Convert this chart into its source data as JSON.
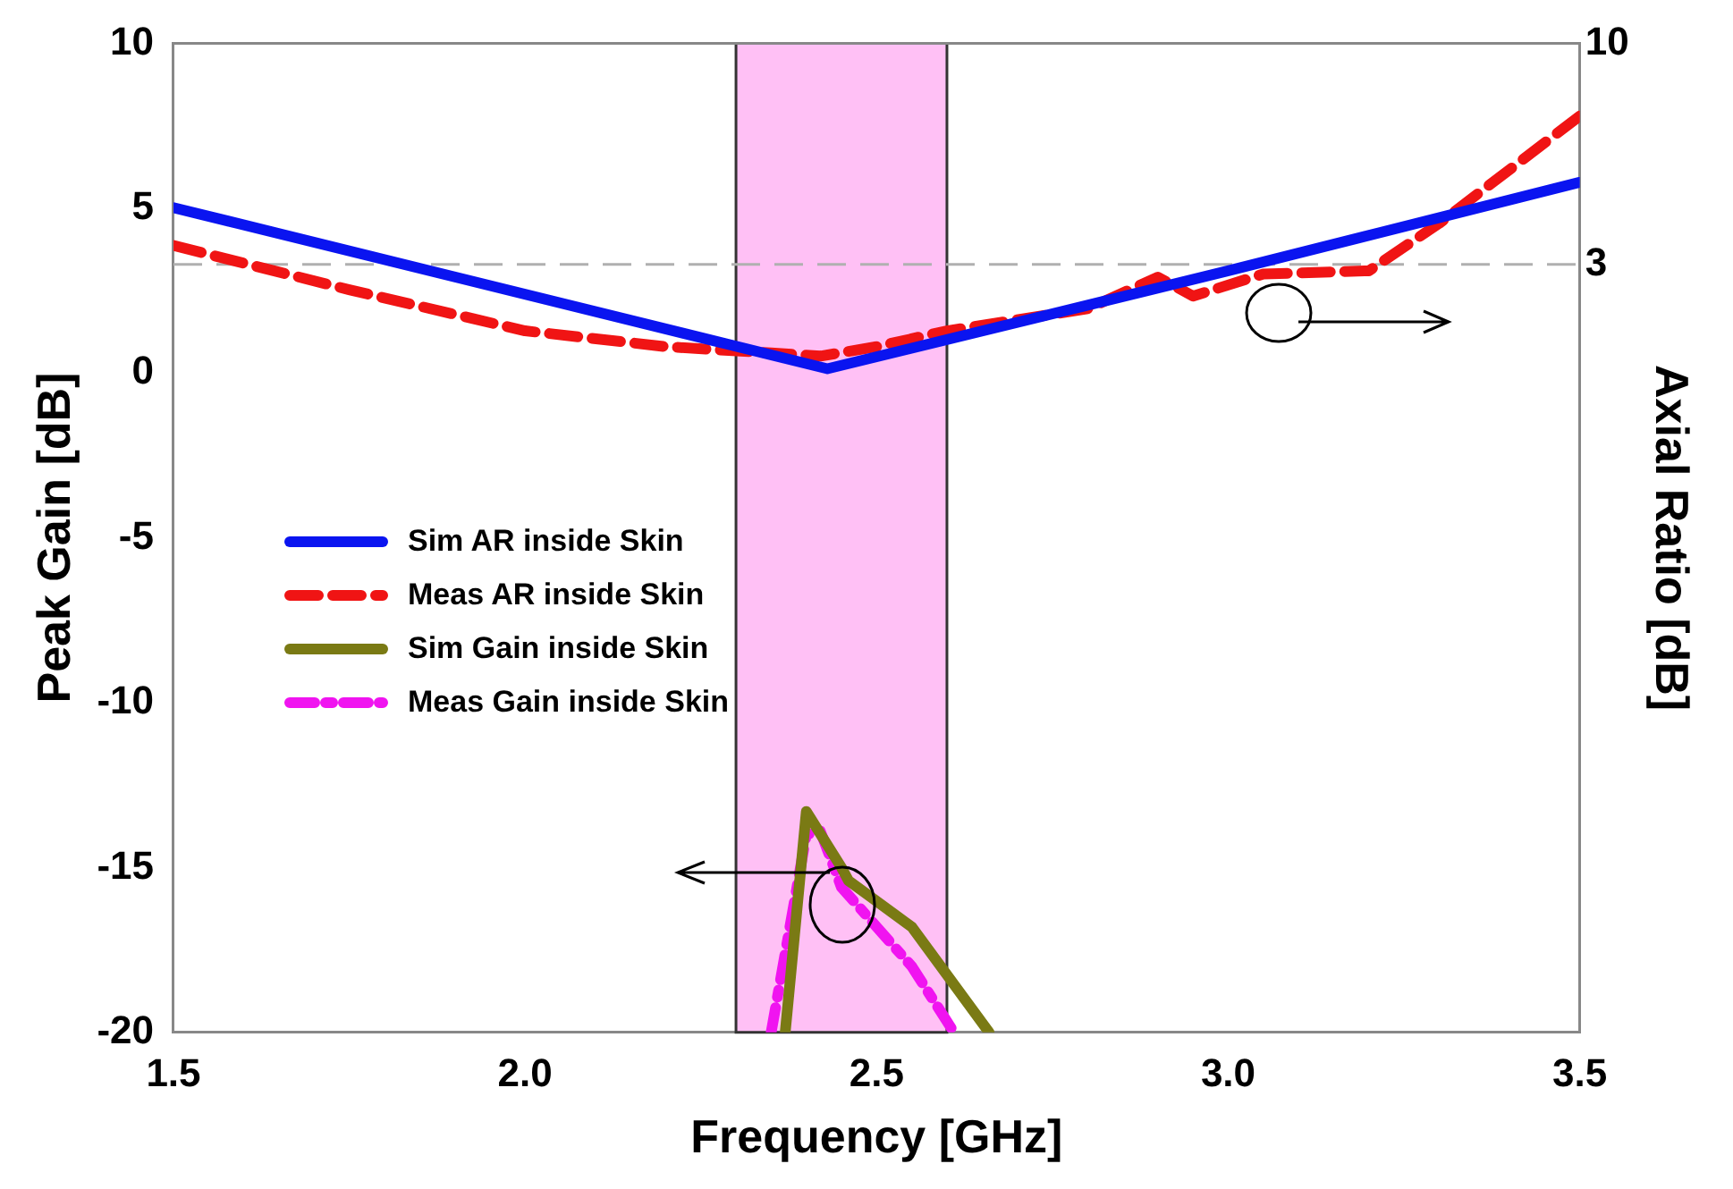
{
  "chart_data": {
    "type": "line",
    "xlabel": "Frequency [GHz]",
    "ylabel": "Peak Gain [dB]",
    "y2label": "Axial Ratio [dB]",
    "xlim": [
      1.5,
      3.5
    ],
    "xticks": [
      {
        "value": 1.5,
        "label": "1.5"
      },
      {
        "value": 2.0,
        "label": "2.0"
      },
      {
        "value": 2.5,
        "label": "2.5"
      },
      {
        "value": 3.0,
        "label": "3.0"
      },
      {
        "value": 3.5,
        "label": "3.5"
      }
    ],
    "ylim": [
      -20,
      10
    ],
    "yticks": [
      -20,
      -15,
      -10,
      -5,
      0,
      5,
      10
    ],
    "y2lim": [
      -21.3,
      10
    ],
    "y2ticks": [
      10,
      3
    ],
    "grid": false,
    "legend": "left",
    "marker": "none",
    "bands": [
      {
        "axis": "x",
        "from": 2.3,
        "to": 2.6,
        "color": "#ffc0f5"
      }
    ],
    "ref_lines": [
      {
        "axis": "y2",
        "value": 3,
        "color": "#b0b0b0",
        "line_style": "dashed"
      }
    ],
    "series": [
      {
        "name": "Sim AR inside Skin",
        "color": "#0a14f0",
        "axis": "y2",
        "line_style": "solid",
        "x": [
          1.5,
          2.43,
          3.0,
          3.5
        ],
        "values": [
          4.8,
          -0.3,
          2.8,
          5.6
        ]
      },
      {
        "name": "Meas AR inside Skin",
        "color": "#f01414",
        "axis": "y2",
        "line_style": "dashed",
        "x": [
          1.5,
          1.75,
          2.0,
          2.2,
          2.35,
          2.42,
          2.5,
          2.6,
          2.8,
          2.9,
          2.95,
          3.05,
          3.2,
          3.3,
          3.5
        ],
        "values": [
          3.6,
          2.2,
          0.9,
          0.4,
          0.2,
          0.1,
          0.4,
          0.9,
          1.6,
          2.6,
          2.0,
          2.7,
          2.8,
          4.3,
          7.7
        ]
      },
      {
        "name": "Sim Gain inside Skin",
        "color": "#7a7a14",
        "axis": "y",
        "line_style": "solid",
        "x": [
          2.37,
          2.4,
          2.45,
          2.46,
          2.55,
          2.66
        ],
        "values": [
          -20,
          -13.3,
          -15.0,
          -15.4,
          -16.8,
          -20
        ]
      },
      {
        "name": "Meas Gain inside Skin",
        "color": "#f014f0",
        "axis": "y",
        "line_style": "dotted",
        "x": [
          2.35,
          2.4,
          2.42,
          2.45,
          2.55,
          2.61
        ],
        "values": [
          -20,
          -14.0,
          -13.9,
          -15.6,
          -18.0,
          -20
        ]
      }
    ]
  }
}
